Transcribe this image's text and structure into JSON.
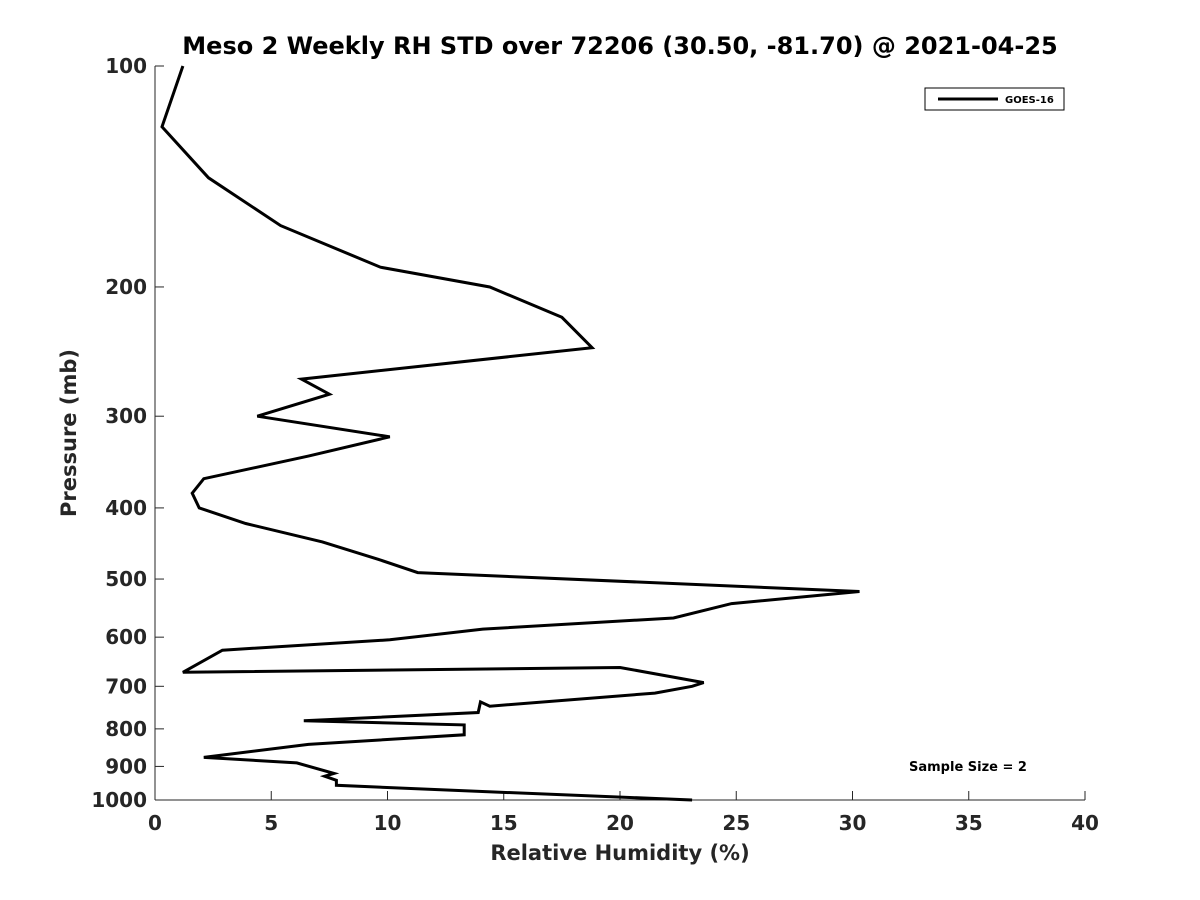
{
  "chart_data": {
    "type": "line",
    "title": "Meso 2 Weekly RH STD over 72206 (30.50, -81.70) @ 2021-04-25",
    "xlabel": "Relative Humidity (%)",
    "ylabel": "Pressure (mb)",
    "xlim": [
      0,
      40
    ],
    "ylim": [
      100,
      1000
    ],
    "y_scale": "log",
    "y_reversed": true,
    "x_ticks": [
      "0",
      "5",
      "10",
      "15",
      "20",
      "25",
      "30",
      "35",
      "40"
    ],
    "y_ticks": [
      "100",
      "200",
      "300",
      "400",
      "500",
      "600",
      "700",
      "800",
      "900",
      "1000"
    ],
    "grid": false,
    "legend_position": "top-right",
    "annotation": "Sample Size = 2",
    "series": [
      {
        "name": "GOES-16",
        "color": "#000000",
        "x": [
          1.2,
          0.3,
          2.3,
          5.4,
          9.7,
          14.4,
          17.5,
          18.8,
          6.3,
          7.5,
          4.4,
          10.1,
          6.6,
          2.1,
          1.6,
          1.9,
          3.9,
          7.2,
          9.6,
          11.3,
          30.3,
          24.8,
          22.3,
          14.1,
          10.1,
          2.9,
          1.2,
          20.0,
          23.6,
          23.1,
          21.5,
          14.4,
          14.0,
          13.9,
          6.4,
          13.3,
          13.3,
          6.6,
          2.1,
          6.1,
          7.7,
          7.3,
          7.8,
          7.8,
          12.8,
          23.1
        ],
        "y": [
          100,
          121,
          142,
          165,
          188,
          200,
          220,
          242,
          267,
          280,
          300,
          320,
          340,
          365,
          382,
          400,
          420,
          445,
          470,
          490,
          520,
          540,
          565,
          585,
          605,
          625,
          670,
          660,
          692,
          700,
          715,
          745,
          735,
          760,
          780,
          790,
          815,
          840,
          875,
          890,
          920,
          928,
          940,
          955,
          970,
          1000
        ]
      }
    ]
  }
}
